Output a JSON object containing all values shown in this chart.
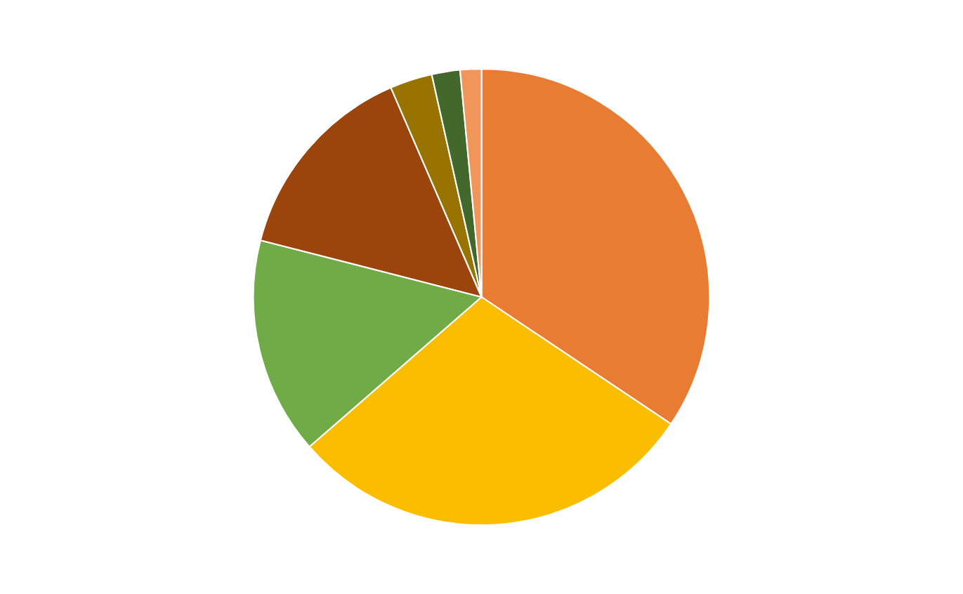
{
  "chart_data": {
    "type": "pie",
    "categories": [
      null,
      null,
      null,
      null,
      null,
      null,
      null
    ],
    "values": [
      34.4,
      29.2,
      15.4,
      14.5,
      3.0,
      2.0,
      1.5
    ],
    "colors": [
      "#e97c33",
      "#fabd00",
      "#70ab47",
      "#9b450d",
      "#997300",
      "#43682b",
      "#f0965a"
    ]
  }
}
